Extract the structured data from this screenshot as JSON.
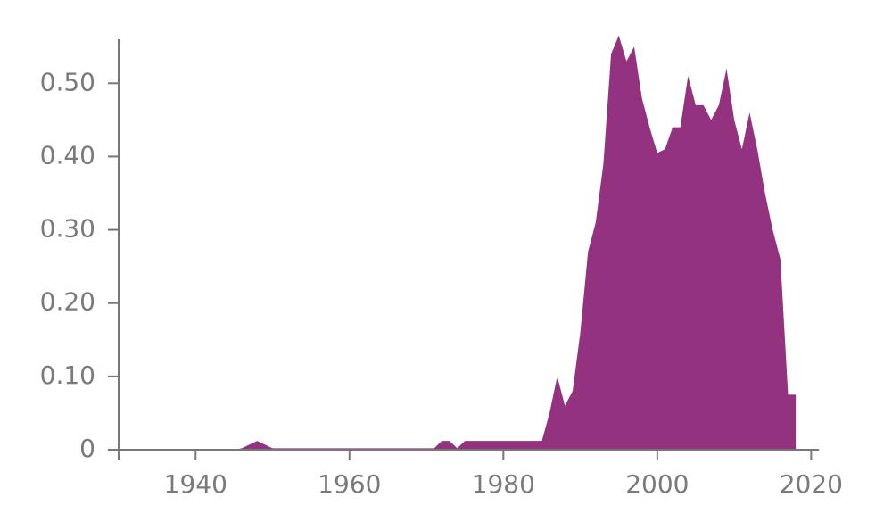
{
  "chart_data": {
    "type": "area",
    "color": "#93327f",
    "x": [
      1945,
      1946,
      1948,
      1950,
      1960,
      1971,
      1972,
      1973,
      1974,
      1975,
      1980,
      1985,
      1986,
      1987,
      1988,
      1989,
      1990,
      1991,
      1992,
      1993,
      1994,
      1995,
      1996,
      1997,
      1998,
      1999,
      2000,
      2001,
      2002,
      2003,
      2004,
      2005,
      2006,
      2007,
      2008,
      2009,
      2010,
      2011,
      2012,
      2013,
      2014,
      2015,
      2016,
      2017,
      2018
    ],
    "values": [
      0,
      0.002,
      0.012,
      0.002,
      0.002,
      0.002,
      0.012,
      0.012,
      0.002,
      0.012,
      0.012,
      0.012,
      0.05,
      0.1,
      0.06,
      0.08,
      0.16,
      0.27,
      0.31,
      0.39,
      0.54,
      0.565,
      0.53,
      0.55,
      0.48,
      0.44,
      0.405,
      0.41,
      0.44,
      0.44,
      0.51,
      0.47,
      0.47,
      0.45,
      0.47,
      0.52,
      0.45,
      0.41,
      0.46,
      0.41,
      0.35,
      0.3,
      0.26,
      0.075,
      0.075
    ],
    "xlim": [
      1930,
      2021
    ],
    "ylim": [
      0,
      0.56
    ],
    "xticks": [
      1940,
      1960,
      1980,
      2000,
      2020
    ],
    "yticks": [
      {
        "value": 0,
        "label": "0"
      },
      {
        "value": 0.1,
        "label": "0.10"
      },
      {
        "value": 0.2,
        "label": "0.20"
      },
      {
        "value": 0.3,
        "label": "0.30"
      },
      {
        "value": 0.4,
        "label": "0.40"
      },
      {
        "value": 0.5,
        "label": "0.50"
      }
    ]
  }
}
